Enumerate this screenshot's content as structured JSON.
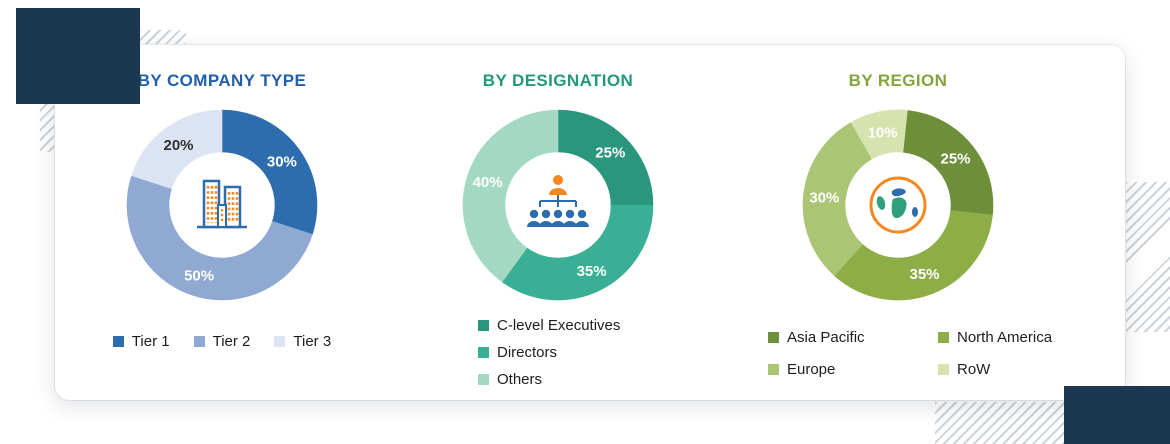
{
  "chart_data": [
    {
      "type": "pie",
      "title": "BY COMPANY TYPE",
      "title_color": "#1e5fae",
      "center_icon": "buildings-icon",
      "start_angle": 0,
      "slices": [
        {
          "label": "Tier 1",
          "value": 30,
          "pct_label": "30%",
          "color": "#2e6dad",
          "pct_color": "#ffffff"
        },
        {
          "label": "Tier 2",
          "value": 50,
          "pct_label": "50%",
          "color": "#8fa9d3",
          "pct_color": "#ffffff"
        },
        {
          "label": "Tier 3",
          "value": 20,
          "pct_label": "20%",
          "color": "#dce4f3",
          "pct_color": "#2f2f2f"
        }
      ],
      "legend": {
        "layout": "row",
        "order": [
          0,
          1,
          2
        ]
      }
    },
    {
      "type": "pie",
      "title": "BY DESIGNATION",
      "title_color": "#21997a",
      "center_icon": "org-chart-icon",
      "start_angle": 0,
      "slices": [
        {
          "label": "C-level Executives",
          "value": 25,
          "pct_label": "25%",
          "color": "#2a967d",
          "pct_color": "#ffffff"
        },
        {
          "label": "Directors",
          "value": 35,
          "pct_label": "35%",
          "color": "#39b096",
          "pct_color": "#ffffff"
        },
        {
          "label": "Others",
          "value": 40,
          "pct_label": "40%",
          "color": "#a3d9c3",
          "pct_color": "#ffffff"
        }
      ],
      "legend": {
        "layout": "column",
        "order": [
          0,
          1,
          2
        ]
      }
    },
    {
      "type": "pie",
      "title": "BY REGION",
      "title_color": "#82a63c",
      "center_icon": "globe-icon",
      "start_angle": -30,
      "slices": [
        {
          "label": "RoW",
          "value": 10,
          "pct_label": "10%",
          "color": "#d6e3ae",
          "pct_color": "#ffffff"
        },
        {
          "label": "Asia Pacific",
          "value": 25,
          "pct_label": "25%",
          "color": "#6d8f3a",
          "pct_color": "#ffffff"
        },
        {
          "label": "North America",
          "value": 35,
          "pct_label": "35%",
          "color": "#8dad46",
          "pct_color": "#ffffff"
        },
        {
          "label": "Europe",
          "value": 30,
          "pct_label": "30%",
          "color": "#aac573",
          "pct_color": "#ffffff"
        }
      ],
      "legend": {
        "layout": "grid",
        "order": [
          1,
          2,
          3,
          0
        ]
      }
    }
  ]
}
